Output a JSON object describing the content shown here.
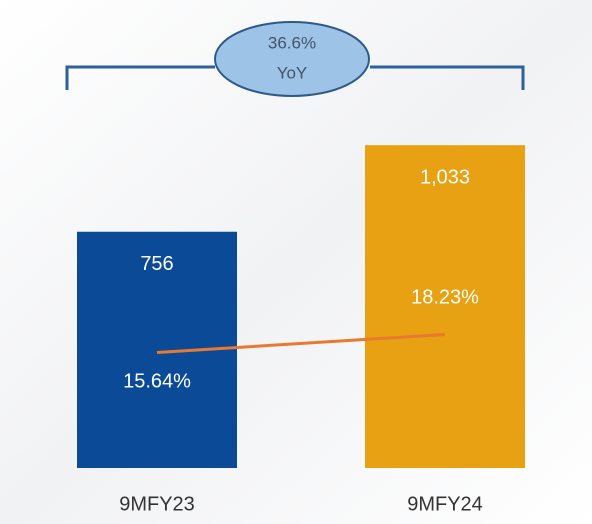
{
  "chart_data": {
    "type": "bar",
    "annotation": [
      "36.6%",
      "YoY"
    ],
    "categories": [
      "9MFY23",
      "9MFY24"
    ],
    "series": [
      {
        "type": "bar",
        "colors": [
          "#0b4a96",
          "#e8a113"
        ],
        "values": [
          756,
          1033
        ],
        "value_labels": [
          "756",
          "1,033"
        ]
      },
      {
        "type": "line",
        "color": "#e8792f",
        "axis": "y2",
        "values": [
          15.64,
          18.23
        ],
        "value_labels": [
          "15.64%",
          "18.23%"
        ]
      }
    ],
    "ylim": [
      0,
      1200
    ],
    "y2lim": [
      -1,
      53
    ]
  }
}
